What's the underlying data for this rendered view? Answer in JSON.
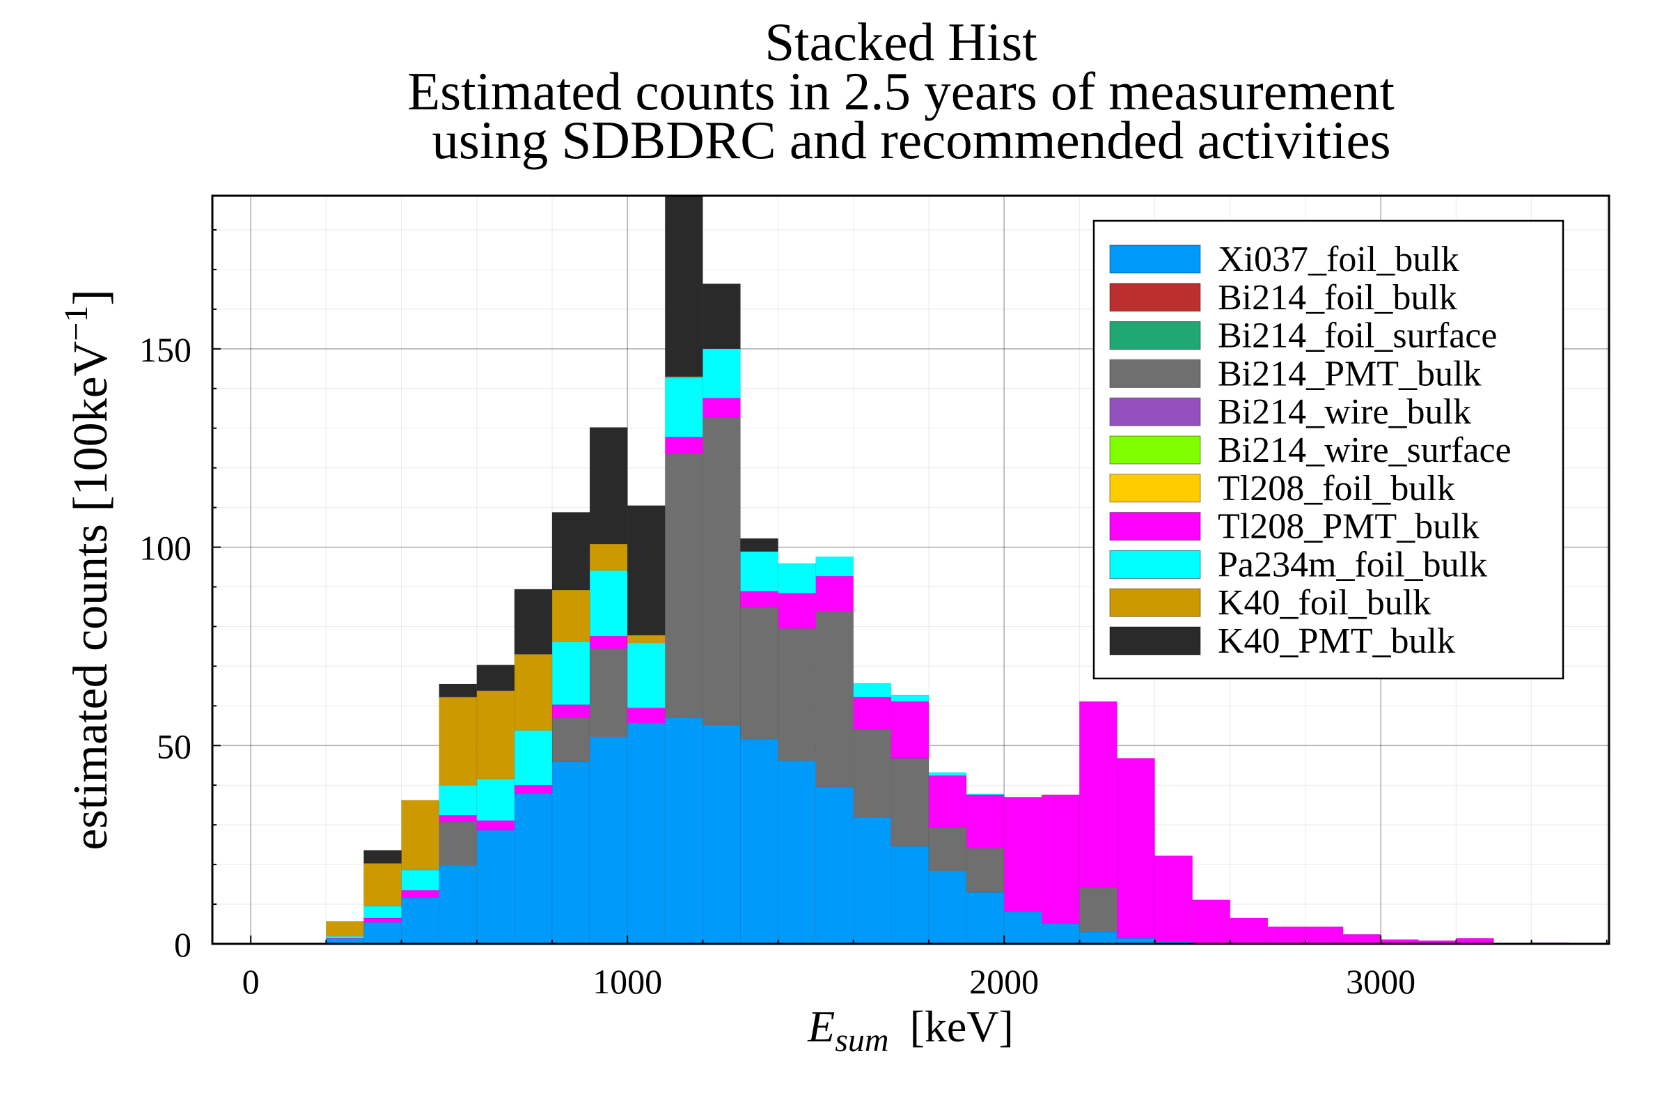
{
  "chart_data": {
    "type": "bar",
    "stacked": true,
    "title": [
      "Stacked Hist",
      "Estimated counts in 2.5 years of measurement",
      "using SDBDRC and recommended activities"
    ],
    "xlabel": {
      "symbol": "E",
      "subscript": "sum",
      "unit": "[keV]"
    },
    "ylabel": {
      "text": "estimated counts [100keV",
      "superscript": "−1",
      "close": "]"
    },
    "bin_width": 100,
    "x": [
      0,
      100,
      200,
      300,
      400,
      500,
      600,
      700,
      800,
      900,
      1000,
      1100,
      1200,
      1300,
      1400,
      1500,
      1600,
      1700,
      1800,
      1900,
      2000,
      2100,
      2200,
      2300,
      2400,
      2500,
      2600,
      2700,
      2800,
      2900,
      3000,
      3100,
      3200,
      3300,
      3400
    ],
    "xlim": [
      -102,
      3606
    ],
    "ylim": [
      0,
      188.6
    ],
    "x_ticks": [
      0,
      1000,
      2000,
      3000
    ],
    "y_ticks": [
      0,
      50,
      100,
      150
    ],
    "grid": true,
    "legend_position": "top-right",
    "series": [
      {
        "name": "Xi037_foil_bulk",
        "color": "#009AFA",
        "values": [
          0,
          0,
          1.3,
          5.4,
          11.6,
          19.7,
          28.6,
          37.8,
          45.9,
          52.2,
          55.7,
          57.0,
          55.1,
          51.6,
          46.2,
          39.5,
          31.9,
          24.6,
          18.4,
          13.0,
          8.1,
          5.1,
          3.0,
          1.4,
          0.5,
          0,
          0,
          0,
          0,
          0,
          0,
          0,
          0,
          0,
          0
        ]
      },
      {
        "name": "Bi214_foil_bulk",
        "color": "#BB2F2F",
        "values": [
          0,
          0,
          0,
          0,
          0,
          0,
          0,
          0,
          0,
          0,
          0,
          0,
          0,
          0,
          0,
          0,
          0,
          0,
          0,
          0,
          0,
          0,
          0,
          0,
          0,
          0,
          0,
          0,
          0,
          0,
          0,
          0,
          0,
          0,
          0
        ]
      },
      {
        "name": "Bi214_foil_surface",
        "color": "#20A874",
        "values": [
          0,
          0,
          0,
          0,
          0,
          0,
          0,
          0,
          0,
          0,
          0,
          0,
          0,
          0,
          0,
          0,
          0,
          0,
          0,
          0,
          0,
          0,
          0,
          0,
          0,
          0,
          0,
          0,
          0,
          0,
          0,
          0,
          0,
          0,
          0
        ]
      },
      {
        "name": "Bi214_PMT_bulk",
        "color": "#6F6F6F",
        "values": [
          0,
          0,
          0,
          0,
          0,
          11.1,
          0,
          0,
          11.1,
          22.2,
          0,
          66.5,
          77.6,
          33.3,
          33.3,
          44.3,
          22.2,
          22.2,
          11.1,
          11.1,
          0,
          0,
          11.1,
          0,
          0,
          0,
          0,
          0,
          0,
          0,
          0,
          0,
          0,
          0,
          0
        ]
      },
      {
        "name": "Bi214_wire_bulk",
        "color": "#9450BF",
        "values": [
          0,
          0,
          0,
          0,
          0,
          0,
          0,
          0,
          0,
          0,
          0,
          0,
          0,
          0,
          0,
          0,
          0,
          0,
          0,
          0,
          0,
          0,
          0,
          0,
          0,
          0,
          0,
          0,
          0,
          0,
          0,
          0,
          0,
          0,
          0
        ]
      },
      {
        "name": "Bi214_wire_surface",
        "color": "#80FF00",
        "values": [
          0,
          0,
          0,
          0,
          0,
          0,
          0,
          0,
          0,
          0,
          0,
          0,
          0,
          0,
          0,
          0,
          0,
          0,
          0,
          0,
          0,
          0,
          0,
          0,
          0,
          0,
          0,
          0,
          0,
          0,
          0,
          0,
          0,
          0,
          0
        ]
      },
      {
        "name": "Tl208_foil_bulk",
        "color": "#FFCC00",
        "values": [
          0,
          0,
          0,
          0,
          0,
          0,
          0,
          0,
          0,
          0,
          0,
          0,
          0,
          0,
          0,
          0,
          0,
          0,
          0,
          0,
          0,
          0,
          0,
          0,
          0,
          0,
          0,
          0,
          0,
          0,
          0,
          0,
          0,
          0,
          0
        ]
      },
      {
        "name": "Tl208_PMT_bulk",
        "color": "#FF00FF",
        "values": [
          0,
          0,
          0.1,
          1.1,
          1.9,
          1.6,
          2.5,
          2.2,
          3.3,
          3.2,
          3.8,
          4.3,
          4.9,
          4.0,
          8.9,
          8.9,
          8.1,
          14.3,
          12.9,
          13.5,
          28.9,
          32.5,
          47.0,
          45.4,
          21.7,
          11.1,
          6.5,
          4.3,
          4.3,
          2.4,
          1.1,
          0.8,
          1.4,
          0,
          0.3
        ]
      },
      {
        "name": "Pa234m_foil_bulk",
        "color": "#00FFFF",
        "values": [
          0,
          0,
          0.5,
          3.0,
          5.1,
          7.6,
          10.5,
          13.8,
          15.9,
          16.5,
          16.4,
          14.9,
          12.4,
          10.0,
          7.5,
          4.9,
          3.5,
          1.6,
          0.8,
          0.2,
          0,
          0,
          0,
          0,
          0,
          0,
          0,
          0,
          0,
          0,
          0,
          0,
          0,
          0,
          0
        ]
      },
      {
        "name": "K40_foil_bulk",
        "color": "#CC9900",
        "values": [
          0,
          0,
          3.8,
          10.8,
          17.6,
          22.2,
          22.2,
          19.2,
          13.0,
          6.7,
          1.9,
          0.3,
          0,
          0,
          0,
          0,
          0,
          0,
          0,
          0,
          0,
          0,
          0,
          0,
          0,
          0,
          0,
          0,
          0,
          0,
          0,
          0,
          0,
          0,
          0
        ]
      },
      {
        "name": "K40_PMT_bulk",
        "color": "#2A2A2A",
        "values": [
          0,
          0,
          0,
          3.3,
          0,
          3.3,
          6.5,
          16.4,
          19.6,
          29.4,
          32.7,
          45.8,
          16.4,
          3.3,
          0,
          0,
          0,
          0,
          0,
          0,
          0,
          0,
          0,
          0,
          0,
          0,
          0,
          0,
          0,
          0,
          0,
          0,
          0,
          0,
          0
        ]
      }
    ]
  }
}
